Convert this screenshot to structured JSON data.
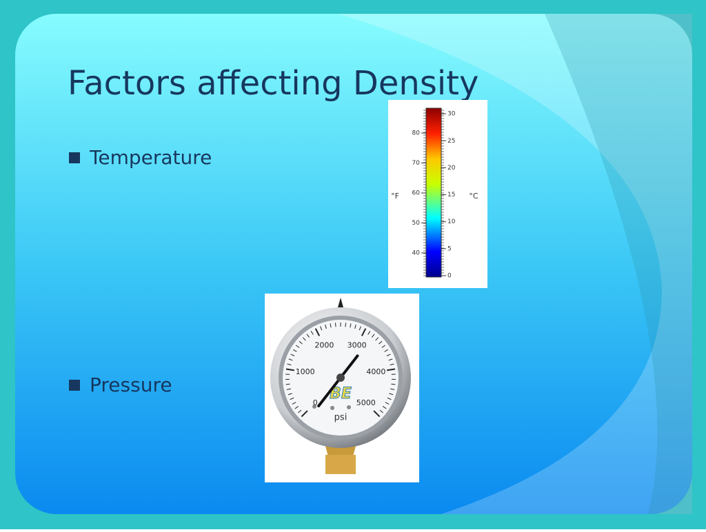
{
  "slide": {
    "title": "Factors affecting Density",
    "bullets": [
      "Temperature",
      "Pressure"
    ]
  },
  "thermometer": {
    "fahrenheit_labels": [
      40,
      50,
      60,
      70,
      80
    ],
    "fahrenheit_unit": "°F",
    "celsius_labels": [
      0,
      5,
      10,
      15,
      20,
      25,
      30
    ],
    "celsius_unit": "°C"
  },
  "gauge": {
    "labels": [
      0,
      1000,
      2000,
      3000,
      4000,
      5000
    ],
    "unit": "psi",
    "brand": "BE"
  }
}
